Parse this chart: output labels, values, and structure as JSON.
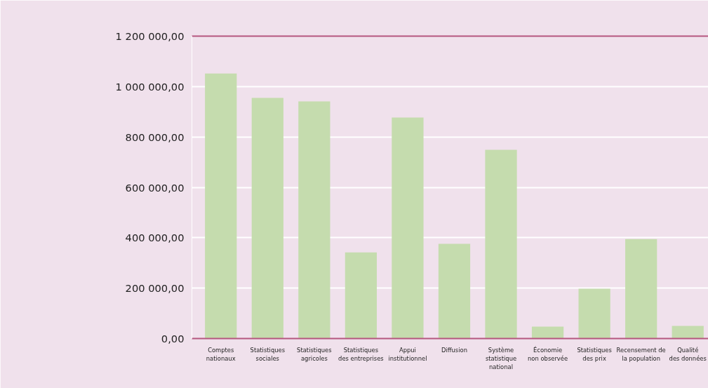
{
  "chart_data": {
    "type": "bar",
    "categories": [
      "Comptes\nnationaux",
      "Statistiques\nsociales",
      "Statistiques\nagricoles",
      "Statistiques\ndes entreprises",
      "Appui\ninstitutionnel",
      "Diffusion",
      "Système\nstatistique\nnational",
      "Économie\nnon observée",
      "Statistiques\ndes prix",
      "Recensement de\nla population",
      "Qualité\ndes données"
    ],
    "values": [
      1052000,
      955000,
      941000,
      342000,
      877000,
      376000,
      749000,
      47000,
      198000,
      395000,
      50000
    ],
    "color": "#c5dcae",
    "ylim": [
      0,
      1200000
    ],
    "yticks": [
      {
        "value": 0,
        "label": "0,00"
      },
      {
        "value": 200000,
        "label": "200 000,00"
      },
      {
        "value": 400000,
        "label": "400 000,00"
      },
      {
        "value": 600000,
        "label": "600 000,00"
      },
      {
        "value": 800000,
        "label": "800 000,00"
      },
      {
        "value": 1000000,
        "label": "1 000 000,00"
      },
      {
        "value": 1200000,
        "label": "1 200 000,00"
      }
    ],
    "grid": "y"
  }
}
